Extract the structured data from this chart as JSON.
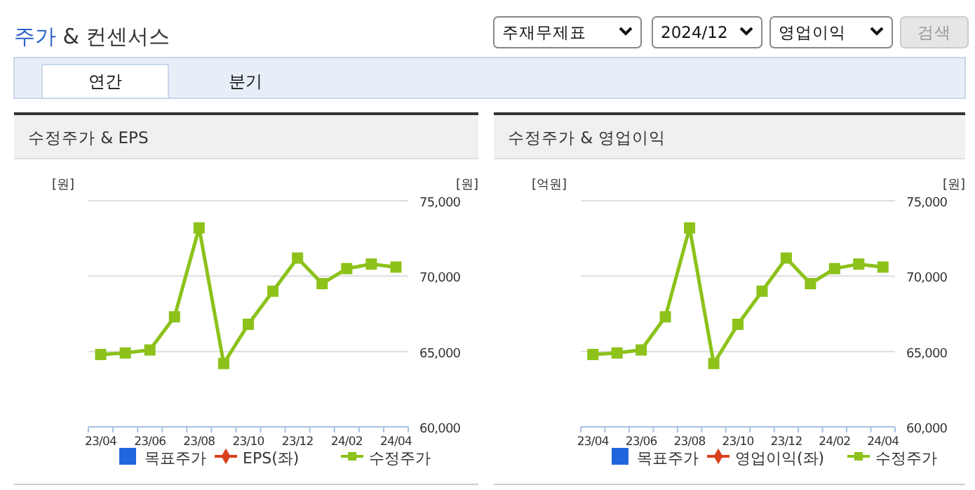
{
  "chart_data": [
    {
      "type": "other",
      "title": "주가 & 컨센서스",
      "annotations": [
        "주재무제표",
        "2024/12",
        "영업이익",
        "검색",
        "연간",
        "분기"
      ]
    },
    {
      "type": "line",
      "title": "수정주가 & EPS",
      "ylabel": "[원]",
      "y2label": "[원]",
      "categories": [
        "23/04",
        null,
        "23/06",
        null,
        "23/08",
        null,
        "23/10",
        null,
        "23/12",
        null,
        "24/02",
        null,
        "24/04"
      ],
      "y2lim": [
        60000,
        75000
      ],
      "y2ticks": [
        {
          "value": 60000,
          "label": "60,000"
        },
        {
          "value": 65000,
          "label": "65,000"
        },
        {
          "value": 70000,
          "label": "70,000"
        },
        {
          "value": 75000,
          "label": "75,000"
        }
      ],
      "grid": "y",
      "legend": "bottom",
      "series": [
        {
          "name": "목표주가",
          "type": "scatter",
          "marker": "square",
          "color": "#2266dd",
          "values": [
            null,
            null,
            null,
            null,
            null,
            null,
            null,
            null,
            null,
            null,
            null,
            null,
            null
          ]
        },
        {
          "name": "EPS(좌)",
          "type": "line",
          "marker": "diamond",
          "color": "#d9401c",
          "values": [
            null,
            null,
            null,
            null,
            null,
            null,
            null,
            null,
            null,
            null,
            null,
            null,
            null
          ]
        },
        {
          "name": "수정주가",
          "type": "line",
          "marker": "square",
          "axis": "y2",
          "color": "#8cc21a",
          "values": [
            64800,
            64900,
            65100,
            67300,
            73200,
            64200,
            66800,
            69000,
            71200,
            69500,
            70500,
            70800,
            70600
          ]
        }
      ]
    },
    {
      "type": "line",
      "title": "수정주가 & 영업이익",
      "ylabel": "[억원]",
      "y2label": "[원]",
      "categories": [
        "23/04",
        null,
        "23/06",
        null,
        "23/08",
        null,
        "23/10",
        null,
        "23/12",
        null,
        "24/02",
        null,
        "24/04"
      ],
      "y2lim": [
        60000,
        75000
      ],
      "y2ticks": [
        {
          "value": 60000,
          "label": "60,000"
        },
        {
          "value": 65000,
          "label": "65,000"
        },
        {
          "value": 70000,
          "label": "70,000"
        },
        {
          "value": 75000,
          "label": "75,000"
        }
      ],
      "grid": "y",
      "legend": "bottom",
      "series": [
        {
          "name": "목표주가",
          "type": "scatter",
          "marker": "square",
          "color": "#2266dd",
          "values": [
            null,
            null,
            null,
            null,
            null,
            null,
            null,
            null,
            null,
            null,
            null,
            null,
            null
          ]
        },
        {
          "name": "영업이익(좌)",
          "type": "line",
          "marker": "diamond",
          "color": "#d9401c",
          "values": [
            null,
            null,
            null,
            null,
            null,
            null,
            null,
            null,
            null,
            null,
            null,
            null,
            null
          ]
        },
        {
          "name": "수정주가",
          "type": "line",
          "marker": "square",
          "axis": "y2",
          "color": "#8cc21a",
          "values": [
            64800,
            64900,
            65100,
            67300,
            73200,
            64200,
            66800,
            69000,
            71200,
            69500,
            70500,
            70800,
            70600
          ]
        }
      ]
    }
  ]
}
